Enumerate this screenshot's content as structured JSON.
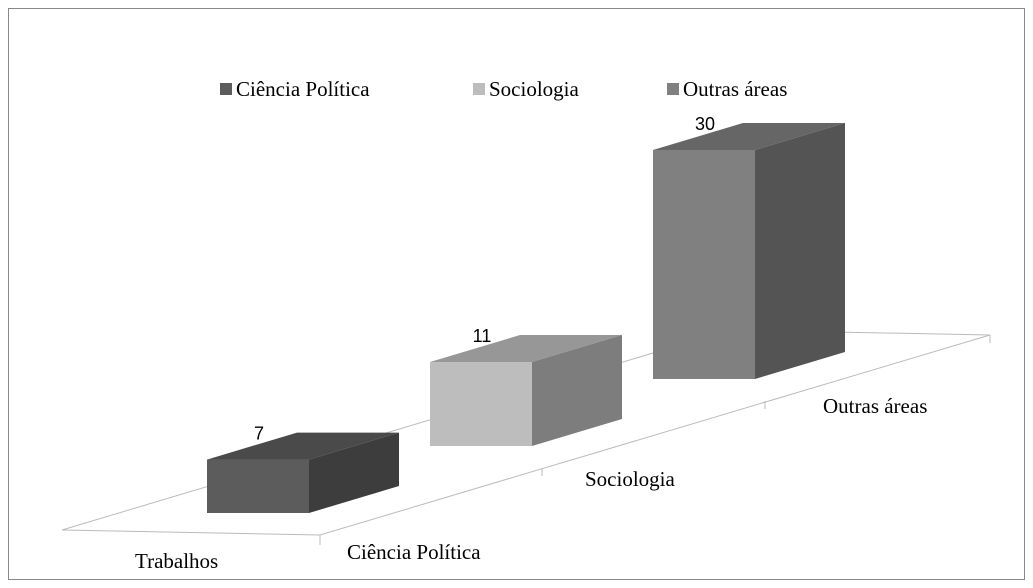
{
  "chart_data": {
    "type": "bar3d",
    "categories": [
      "Trabalhos"
    ],
    "series": [
      {
        "name": "Ciência Política",
        "color": "#5c5c5c",
        "values": [
          7
        ]
      },
      {
        "name": "Sociologia",
        "color": "#bdbdbd",
        "values": [
          11
        ]
      },
      {
        "name": "Outras áreas",
        "color": "#808080",
        "values": [
          30
        ]
      }
    ]
  }
}
